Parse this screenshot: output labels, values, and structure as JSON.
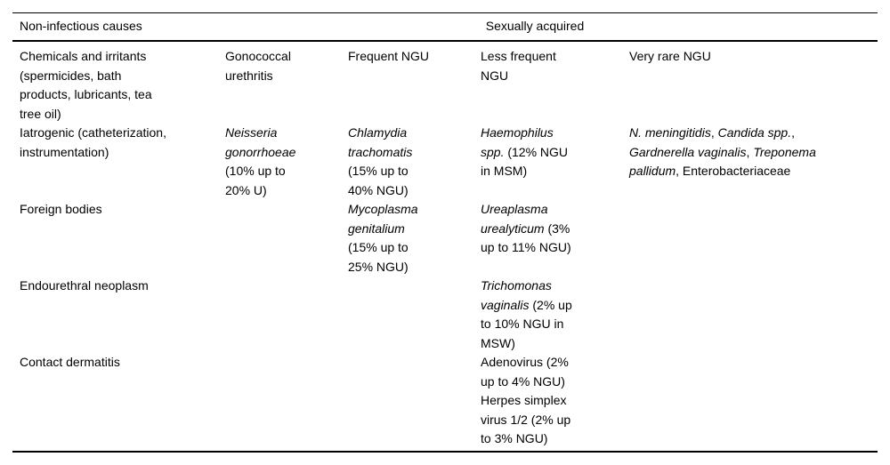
{
  "page": {
    "background": "#ffffff",
    "text_color": "#000000",
    "rule_color": "#000000"
  },
  "table": {
    "title_row": {
      "non_infectious": "Non-infectious causes",
      "sexually_acquired": "Sexually acquired"
    },
    "rows": [
      {
        "cells": [
          [
            [
              {
                "t": "Chemicals and irritants"
              }
            ],
            [
              {
                "t": "(spermicides, bath"
              }
            ],
            [
              {
                "t": "products, lubricants, tea"
              }
            ],
            [
              {
                "t": "tree oil)"
              }
            ]
          ],
          [
            [
              {
                "t": "Gonococcal"
              }
            ],
            [
              {
                "t": "urethritis"
              }
            ]
          ],
          [
            [
              {
                "t": "Frequent NGU"
              }
            ]
          ],
          [
            [
              {
                "t": "Less frequent"
              }
            ],
            [
              {
                "t": "NGU"
              }
            ]
          ],
          [
            [
              {
                "t": "Very rare NGU"
              }
            ]
          ]
        ]
      },
      {
        "cells": [
          [
            [
              {
                "t": "Iatrogenic (catheterization,"
              }
            ],
            [
              {
                "t": "instrumentation)"
              }
            ]
          ],
          [
            [
              {
                "t": "Neisseria",
                "i": true
              }
            ],
            [
              {
                "t": "gonorrhoeae",
                "i": true
              }
            ],
            [
              {
                "t": "(10% up to"
              }
            ],
            [
              {
                "t": "20% U)"
              }
            ]
          ],
          [
            [
              {
                "t": "Chlamydia",
                "i": true
              }
            ],
            [
              {
                "t": "trachomatis",
                "i": true
              }
            ],
            [
              {
                "t": "(15% up to"
              }
            ],
            [
              {
                "t": "40% NGU)"
              }
            ]
          ],
          [
            [
              {
                "t": "Haemophilus",
                "i": true
              }
            ],
            [
              {
                "t": "spp.",
                "i": true
              },
              {
                "t": " (12% NGU"
              }
            ],
            [
              {
                "t": "in MSM)"
              }
            ]
          ],
          [
            [
              {
                "t": "N. meningitidis",
                "i": true
              },
              {
                "t": ", "
              },
              {
                "t": "Candida spp.",
                "i": true
              },
              {
                "t": ","
              }
            ],
            [
              {
                "t": "Gardnerella vaginalis",
                "i": true
              },
              {
                "t": ", "
              },
              {
                "t": "Treponema",
                "i": true
              }
            ],
            [
              {
                "t": "pallidum",
                "i": true
              },
              {
                "t": ", Enterobacteriaceae"
              }
            ]
          ]
        ]
      },
      {
        "cells": [
          [
            [
              {
                "t": "Foreign bodies"
              }
            ]
          ],
          [],
          [
            [
              {
                "t": "Mycoplasma",
                "i": true
              }
            ],
            [
              {
                "t": "genitalium",
                "i": true
              }
            ],
            [
              {
                "t": "(15% up to"
              }
            ],
            [
              {
                "t": "25% NGU)"
              }
            ]
          ],
          [
            [
              {
                "t": "Ureaplasma",
                "i": true
              }
            ],
            [
              {
                "t": "urealyticum",
                "i": true
              },
              {
                "t": " (3%"
              }
            ],
            [
              {
                "t": "up to 11% NGU)"
              }
            ]
          ],
          []
        ]
      },
      {
        "cells": [
          [
            [
              {
                "t": "Endourethral neoplasm"
              }
            ]
          ],
          [],
          [],
          [
            [
              {
                "t": "Trichomonas",
                "i": true
              }
            ],
            [
              {
                "t": "vaginalis",
                "i": true
              },
              {
                "t": " (2% up"
              }
            ],
            [
              {
                "t": "to 10% NGU in"
              }
            ],
            [
              {
                "t": "MSW)"
              }
            ]
          ],
          []
        ]
      },
      {
        "cells": [
          [
            [
              {
                "t": "Contact dermatitis"
              }
            ]
          ],
          [],
          [],
          [
            [
              {
                "t": "Adenovirus (2%"
              }
            ],
            [
              {
                "t": "up to 4% NGU)"
              }
            ],
            [
              {
                "t": "Herpes simplex"
              }
            ],
            [
              {
                "t": "virus 1/2 (2% up"
              }
            ],
            [
              {
                "t": "to 3% NGU)"
              }
            ]
          ],
          []
        ]
      }
    ]
  }
}
